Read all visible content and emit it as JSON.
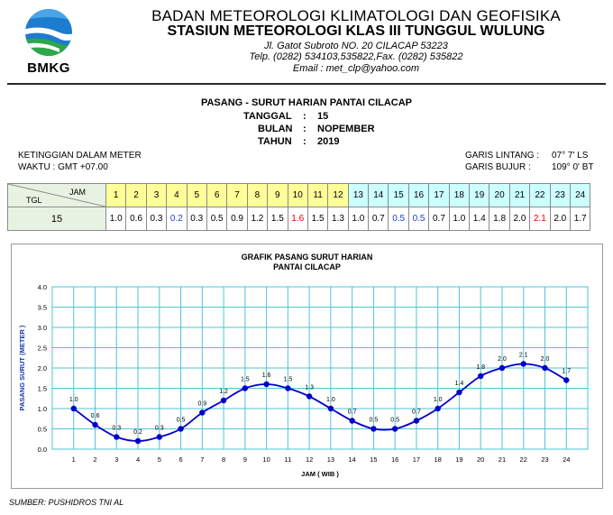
{
  "header": {
    "logo_text": "BMKG",
    "agency": "BADAN METEOROLOGI KLIMATOLOGI DAN GEOFISIKA",
    "station": "STASIUN METEOROLOGI KLAS III TUNGGUL WULUNG",
    "address": "Jl. Gatot Subroto NO. 20 CILACAP 53223",
    "phone": "Telp. (0282) 534103,535822,Fax. (0282) 535822",
    "email": "Email : met_clp@yahoo.com"
  },
  "report": {
    "title": "PASANG - SURUT HARIAN PANTAI CILACAP",
    "date_label": "TANGGAL",
    "date_value": "15",
    "month_label": "BULAN",
    "month_value": "NOPEMBER",
    "year_label": "TAHUN",
    "year_value": "2019",
    "sep": ":"
  },
  "info": {
    "height_unit": "KETINGGIAN DALAM METER",
    "time_zone": "WAKTU : GMT +07.00",
    "lat_label": "GARIS LINTANG :",
    "lat_value": "07° 7' LS",
    "lon_label": "GARIS BUJUR  :",
    "lon_value": "109° 0' BT"
  },
  "table": {
    "jam_label": "JAM",
    "tgl_label": "TGL",
    "day": "15",
    "hours": [
      "1",
      "2",
      "3",
      "4",
      "5",
      "6",
      "7",
      "8",
      "9",
      "10",
      "11",
      "12",
      "13",
      "14",
      "15",
      "16",
      "17",
      "18",
      "19",
      "20",
      "21",
      "22",
      "23",
      "24"
    ],
    "values": [
      "1.0",
      "0.6",
      "0.3",
      "0.2",
      "0.3",
      "0.5",
      "0.9",
      "1.2",
      "1.5",
      "1.6",
      "1.5",
      "1.3",
      "1.0",
      "0.7",
      "0.5",
      "0.5",
      "0.7",
      "1.0",
      "1.4",
      "1.8",
      "2.0",
      "2.1",
      "2.0",
      "1.7"
    ],
    "value_colors": [
      "",
      "",
      "",
      "blue",
      "",
      "",
      "",
      "",
      "",
      "red",
      "",
      "",
      "",
      "",
      "blue",
      "blue",
      "",
      "",
      "",
      "",
      "",
      "red",
      "",
      ""
    ]
  },
  "colors": {
    "line": "#0000cc",
    "grid": "#4fc3d9",
    "am_header": "#ffff99",
    "pm_header": "#ccffff",
    "high": "#e60000",
    "low": "#1f3fcf"
  },
  "chart_data": {
    "type": "line",
    "title": "GRAFIK PASANG SURUT HARIAN",
    "subtitle": "PANTAI CILACAP",
    "xlabel": "JAM  ( WIB )",
    "ylabel": "PASANG  SURUT (METER )",
    "x": [
      1,
      2,
      3,
      4,
      5,
      6,
      7,
      8,
      9,
      10,
      11,
      12,
      13,
      14,
      15,
      16,
      17,
      18,
      19,
      20,
      21,
      22,
      23,
      24
    ],
    "y": [
      1.0,
      0.6,
      0.3,
      0.2,
      0.3,
      0.5,
      0.9,
      1.2,
      1.5,
      1.6,
      1.5,
      1.3,
      1.0,
      0.7,
      0.5,
      0.5,
      0.7,
      1.0,
      1.4,
      1.8,
      2.0,
      2.1,
      2.0,
      1.7
    ],
    "point_labels": [
      "1.0",
      "0.6",
      "0.3",
      "0.2",
      "0.3",
      "0.5",
      "0.9",
      "1.2",
      "1.5",
      "1.6",
      "1.5",
      "1.3",
      "1.0",
      "0.7",
      "0.5",
      "0.5",
      "0.7",
      "1.0",
      "1.4",
      "1.8",
      "2.0",
      "2.1",
      "2.0",
      "1.7"
    ],
    "xlim": [
      0,
      25
    ],
    "ylim": [
      0,
      4.0
    ],
    "yticks": [
      "0.0",
      "0.5",
      "1.0",
      "1.5",
      "2.0",
      "2.5",
      "3.0",
      "3.5",
      "4.0"
    ],
    "xticks": [
      "1",
      "2",
      "3",
      "4",
      "5",
      "6",
      "7",
      "8",
      "9",
      "10",
      "11",
      "12",
      "13",
      "14",
      "15",
      "16",
      "17",
      "18",
      "19",
      "20",
      "21",
      "22",
      "23",
      "24"
    ],
    "grid": true,
    "legend": false
  },
  "footer": {
    "source": "SUMBER: PUSHIDROS TNI AL"
  }
}
